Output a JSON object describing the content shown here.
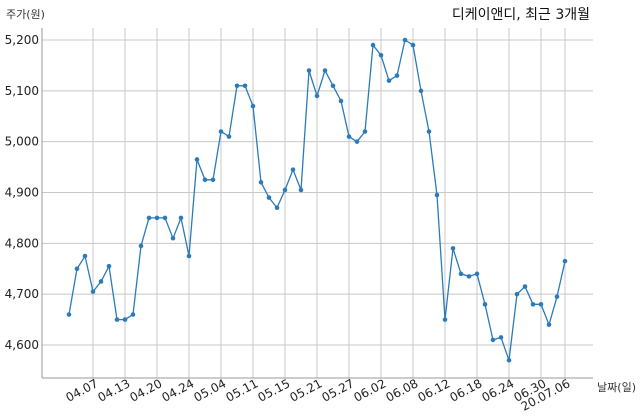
{
  "chart_data": {
    "type": "line",
    "title": "디케이앤디, 최근 3개월",
    "ylabel": "주가(원)",
    "xlabel": "날짜(일)",
    "ylim": [
      4550,
      5230
    ],
    "y_ticks": [
      4600,
      4700,
      4800,
      4900,
      5000,
      5100,
      5200
    ],
    "y_tick_labels": [
      "4,600",
      "4,700",
      "4,800",
      "4,900",
      "5,000",
      "5,100",
      "5,200"
    ],
    "x_tick_labels": [
      "04.07",
      "04.13",
      "04.20",
      "04.24",
      "05.04",
      "05.11",
      "05.15",
      "05.21",
      "05.27",
      "06.02",
      "06.08",
      "06.12",
      "06.18",
      "06.24",
      "06.30",
      "20.07.06"
    ],
    "grid": true,
    "line_color": "#2b7bb9",
    "series": [
      {
        "name": "",
        "values": [
          4660,
          4750,
          4775,
          4705,
          4725,
          4755,
          4650,
          4650,
          4660,
          4795,
          4850,
          4850,
          4850,
          4810,
          4850,
          4775,
          4965,
          4925,
          4925,
          5020,
          5010,
          5110,
          5110,
          5070,
          4920,
          4890,
          4870,
          4905,
          4945,
          4905,
          5140,
          5090,
          5140,
          5110,
          5080,
          5010,
          5000,
          5020,
          5190,
          5170,
          5120,
          5130,
          5200,
          5190,
          5100,
          5020,
          4895,
          4650,
          4790,
          4740,
          4735,
          4740,
          4680,
          4610,
          4615,
          4570,
          4700,
          4715,
          4680,
          4680,
          4640,
          4695,
          4765
        ]
      }
    ]
  }
}
